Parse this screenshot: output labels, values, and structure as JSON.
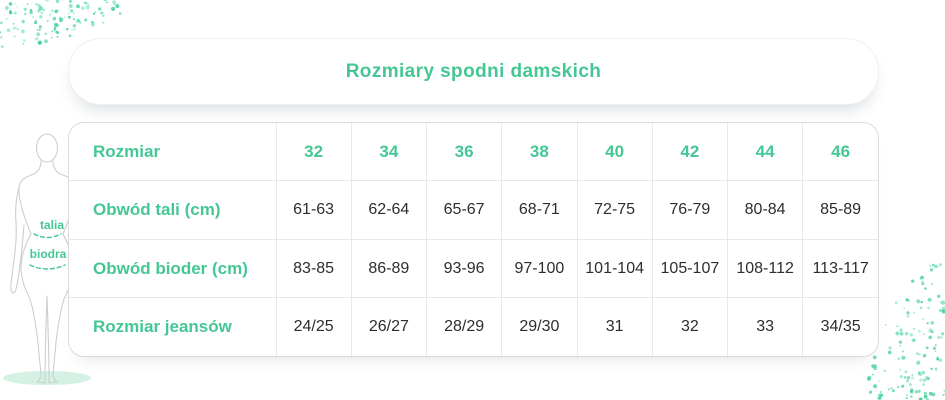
{
  "title": "Rozmiary spodni damskich",
  "figure": {
    "waist_label": "talia",
    "hips_label": "biodra"
  },
  "chart_data": {
    "type": "table",
    "title": "Rozmiary spodni damskich",
    "header": [
      "Rozmiar",
      "32",
      "34",
      "36",
      "38",
      "40",
      "42",
      "44",
      "46"
    ],
    "rows": [
      [
        "Obwód tali (cm)",
        "61-63",
        "62-64",
        "65-67",
        "68-71",
        "72-75",
        "76-79",
        "80-84",
        "85-89"
      ],
      [
        "Obwód bioder (cm)",
        "83-85",
        "86-89",
        "93-96",
        "97-100",
        "101-104",
        "105-107",
        "108-112",
        "113-117"
      ],
      [
        "Rozmiar jeansów",
        "24/25",
        "26/27",
        "28/29",
        "29/30",
        "31",
        "32",
        "33",
        "34/35"
      ]
    ]
  },
  "colors": {
    "accent_green": "#45c795",
    "speckle_green": "#55d6a2",
    "grid_line": "#e7e8e9",
    "value_text": "#2d2d2d",
    "figure_outline": "#c9cfd4"
  }
}
